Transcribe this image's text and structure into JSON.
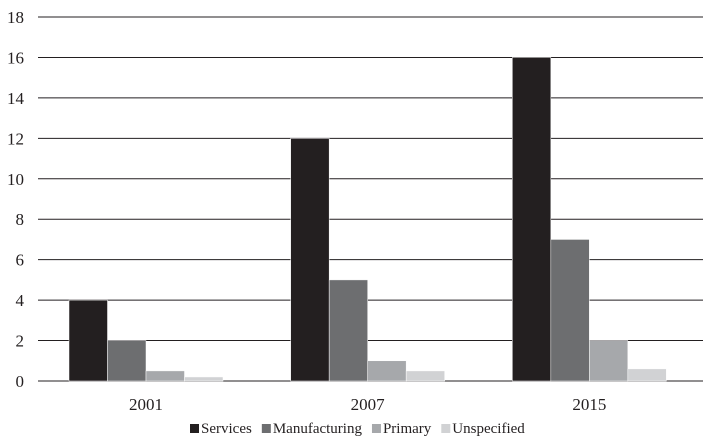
{
  "chart_data": {
    "type": "bar",
    "categories": [
      "2001",
      "2007",
      "2015"
    ],
    "series": [
      {
        "name": "Services",
        "values": [
          4,
          12,
          16
        ],
        "color": "#231f20"
      },
      {
        "name": "Manufacturing",
        "values": [
          2,
          5,
          7
        ],
        "color": "#6d6e70"
      },
      {
        "name": "Primary",
        "values": [
          0.5,
          1,
          2
        ],
        "color": "#a6a8ab"
      },
      {
        "name": "Unspecified",
        "values": [
          0.2,
          0.5,
          0.6
        ],
        "color": "#d1d2d4"
      }
    ],
    "ylim": [
      0,
      18
    ],
    "yticks": [
      0,
      2,
      4,
      6,
      8,
      10,
      12,
      14,
      16,
      18
    ],
    "grid": true,
    "legend_position": "bottom-center",
    "title": "",
    "xlabel": "",
    "ylabel": ""
  }
}
